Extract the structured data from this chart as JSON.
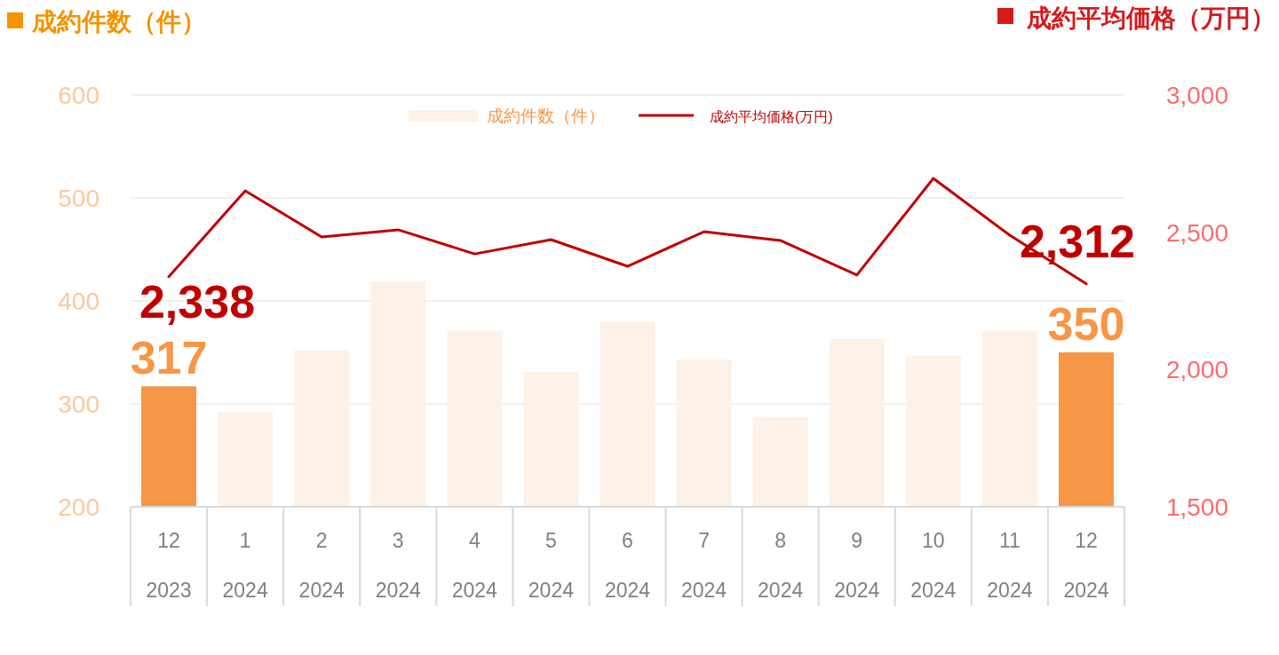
{
  "chart_data": {
    "type": "bar",
    "ylabel": "成約件数（件）",
    "y2label": "成約平均価格（万円）",
    "categories": [
      "12\n2023",
      "1\n2024",
      "2\n2024",
      "3\n2024",
      "4\n2024",
      "5\n2024",
      "6\n2024",
      "7\n2024",
      "8\n2024",
      "9\n2024",
      "10\n2024",
      "11\n2024",
      "12\n2024"
    ],
    "series": [
      {
        "name": "成約件数（件）",
        "color": "#fdf1e8",
        "colors": [
          "#f79646",
          "#fdf1e8",
          "#fdf1e8",
          "#fdf1e8",
          "#fdf1e8",
          "#fdf1e8",
          "#fdf1e8",
          "#fdf1e8",
          "#fdf1e8",
          "#fdf1e8",
          "#fdf1e8",
          "#fdf1e8",
          "#f79646"
        ],
        "values": [
          317,
          292,
          352,
          419,
          371,
          331,
          380,
          343,
          287,
          363,
          347,
          371,
          350
        ],
        "value_labels": [
          "317",
          null,
          null,
          null,
          null,
          null,
          null,
          null,
          null,
          null,
          null,
          null,
          "350"
        ]
      },
      {
        "name": "成約平均価格(万円)",
        "type": "line",
        "axis": "y2",
        "color": "#c00000",
        "values": [
          2338,
          2651,
          2483,
          2509,
          2421,
          2473,
          2376,
          2502,
          2470,
          2344,
          2696,
          2489,
          2312
        ],
        "value_labels": [
          "2,338",
          null,
          null,
          null,
          null,
          null,
          null,
          null,
          null,
          null,
          null,
          null,
          "2,312"
        ]
      }
    ],
    "ylim": [
      200,
      600
    ],
    "yticks": [
      200,
      300,
      400,
      500,
      600
    ],
    "y2lim": [
      1500,
      3000
    ],
    "y2ticks": [
      {
        "value": 1500,
        "label": "1,500"
      },
      {
        "value": 2000,
        "label": "2,000"
      },
      {
        "value": 2500,
        "label": "2,500"
      },
      {
        "value": 3000,
        "label": "3,000"
      }
    ],
    "grid": "y",
    "legend": "top",
    "marker": "none",
    "line_style": "solid"
  }
}
